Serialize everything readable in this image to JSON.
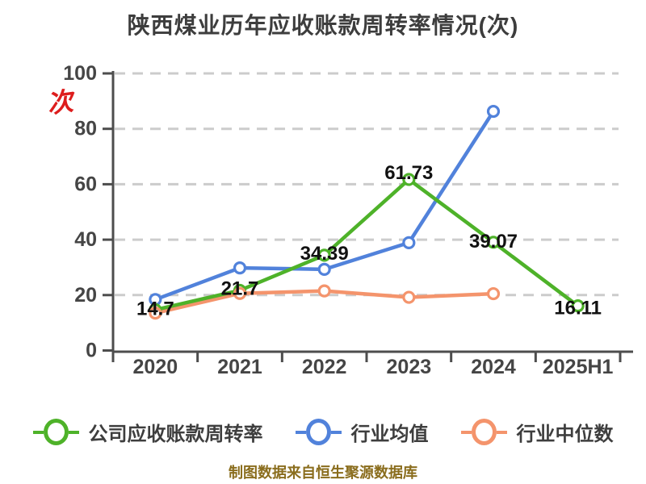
{
  "title": "陕西煤业历年应收账款周转率情况(次)",
  "caption": "制图数据来自恒生聚源数据库",
  "y_axis": {
    "unit_label": "次",
    "ticks": [
      0,
      20,
      40,
      60,
      80,
      100
    ],
    "tick_color": "#454545"
  },
  "x_axis": {
    "labels": [
      "2020",
      "2021",
      "2022",
      "2023",
      "2024",
      "2025H1"
    ]
  },
  "legend": {
    "items": [
      {
        "label": "公司应收账款周转率",
        "color": "#4eb229",
        "marker": "circle-on-line"
      },
      {
        "label": "行业均值",
        "color": "#5182db",
        "marker": "circle-on-line"
      },
      {
        "label": "行业中位数",
        "color": "#f4946c",
        "marker": "circle-on-line"
      }
    ]
  },
  "colors": {
    "title_text": "#3d3d3d",
    "axis_line": "#4d4d4d",
    "gridline": "#cccccc",
    "data_label": "#111111",
    "caption_text": "#8a6d1d",
    "unit_label_red": "#dd1d1d",
    "series_green": "#4eb229",
    "series_blue": "#5182db",
    "series_orange": "#f4946c"
  },
  "chart_data": {
    "type": "line",
    "title": "陕西煤业历年应收账款周转率情况(次)",
    "categories": [
      "2020",
      "2021",
      "2022",
      "2023",
      "2024",
      "2025H1"
    ],
    "xlabel": "",
    "ylabel": "次",
    "ylim": [
      0,
      100
    ],
    "y_ticks": [
      0,
      20,
      40,
      60,
      80,
      100
    ],
    "grid": "horizontal-dashed",
    "legend_position": "bottom",
    "marker_style": "open-circle-white-fill",
    "series": [
      {
        "name": "公司应收账款周转率",
        "color": "#4eb229",
        "values": [
          14.7,
          21.7,
          34.39,
          61.73,
          39.07,
          16.11
        ],
        "labels": [
          "14.7",
          "21.7",
          "34.39",
          "61.73",
          "39.07",
          "16.11"
        ]
      },
      {
        "name": "行业均值",
        "color": "#5182db",
        "values": [
          18.4,
          29.8,
          29.3,
          38.9,
          86.3,
          null
        ],
        "labels": []
      },
      {
        "name": "行业中位数",
        "color": "#f4946c",
        "values": [
          13.5,
          20.6,
          21.5,
          19.2,
          20.5,
          null
        ],
        "labels": []
      }
    ]
  }
}
